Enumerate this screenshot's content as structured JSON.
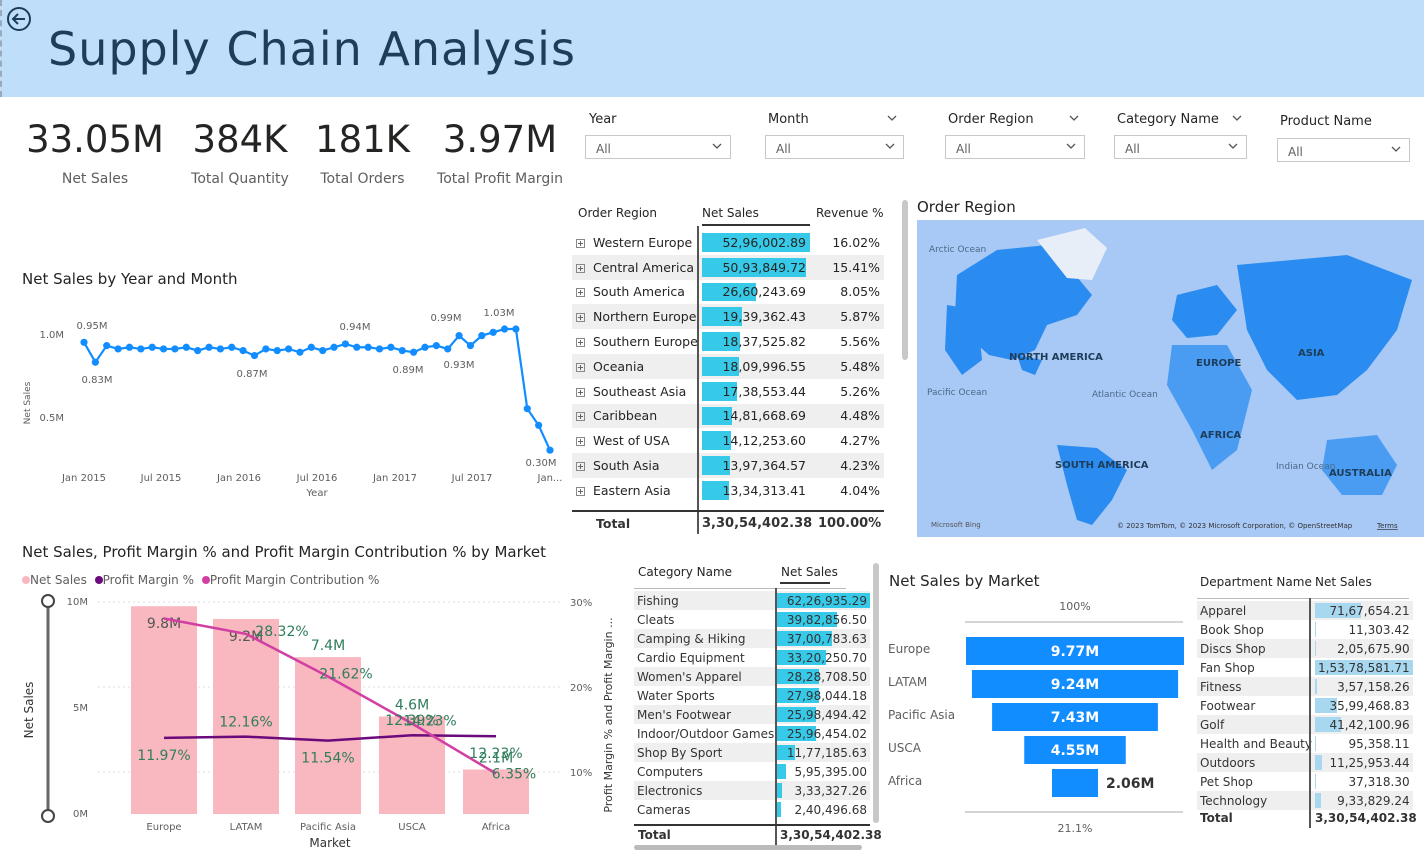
{
  "header": {
    "title": "Supply Chain Analysis"
  },
  "kpis": [
    {
      "value": "33.05M",
      "label": "Net Sales"
    },
    {
      "value": "384K",
      "label": "Total Quantity"
    },
    {
      "value": "181K",
      "label": "Total Orders"
    },
    {
      "value": "3.97M",
      "label": "Total Profit Margin"
    }
  ],
  "slicers": [
    {
      "label": "Year",
      "value": "All"
    },
    {
      "label": "Month",
      "value": "All"
    },
    {
      "label": "Order Region",
      "value": "All"
    },
    {
      "label": "Category Name",
      "value": "All"
    },
    {
      "label": "Product Name",
      "value": "All"
    }
  ],
  "region_table": {
    "headers": [
      "Order Region",
      "Net Sales",
      "Revenue %"
    ],
    "rows": [
      {
        "region": "Western Europe",
        "sales": "52,96,002.89",
        "pct": "16.02%",
        "share": 1.0
      },
      {
        "region": "Central America",
        "sales": "50,93,849.72",
        "pct": "15.41%",
        "share": 0.96
      },
      {
        "region": "South America",
        "sales": "26,60,243.69",
        "pct": "8.05%",
        "share": 0.5
      },
      {
        "region": "Northern Europe",
        "sales": "19,39,362.43",
        "pct": "5.87%",
        "share": 0.37
      },
      {
        "region": "Southern Europe",
        "sales": "18,37,525.82",
        "pct": "5.56%",
        "share": 0.35
      },
      {
        "region": "Oceania",
        "sales": "18,09,996.55",
        "pct": "5.48%",
        "share": 0.34
      },
      {
        "region": "Southeast Asia",
        "sales": "17,38,553.44",
        "pct": "5.26%",
        "share": 0.33
      },
      {
        "region": "Caribbean",
        "sales": "14,81,668.69",
        "pct": "4.48%",
        "share": 0.28
      },
      {
        "region": "West of USA",
        "sales": "14,12,253.60",
        "pct": "4.27%",
        "share": 0.27
      },
      {
        "region": "South Asia",
        "sales": "13,97,364.57",
        "pct": "4.23%",
        "share": 0.26
      },
      {
        "region": "Eastern Asia",
        "sales": "13,34,313.41",
        "pct": "4.04%",
        "share": 0.25
      }
    ],
    "total_label": "Total",
    "total_sales": "3,30,54,402.38",
    "total_pct": "100.00%"
  },
  "map": {
    "title": "Order Region",
    "labels": {
      "north_america": "NORTH AMERICA",
      "south_america": "SOUTH AMERICA",
      "europe": "EUROPE",
      "africa": "AFRICA",
      "asia": "ASIA",
      "australia": "AUSTRALIA",
      "arctic": "Arctic Ocean",
      "pacific": "Pacific Ocean",
      "atlantic": "Atlantic Ocean",
      "indian": "Indian Ocean"
    },
    "bing": "Microsoft Bing",
    "copyright": "© 2023 TomTom, © 2023 Microsoft Corporation, © OpenStreetMap",
    "terms": "Terms"
  },
  "line_chart": {
    "title": "Net Sales by Year and Month",
    "ylabel": "Net Sales",
    "xlabel": "Year",
    "yticks": [
      "1.0M",
      "0.5M"
    ],
    "xticks": [
      "Jan 2015",
      "Jul 2015",
      "Jan 2016",
      "Jul 2016",
      "Jan 2017",
      "Jul 2017",
      "Jan..."
    ],
    "labels": [
      "0.95M",
      "0.83M",
      "0.87M",
      "0.94M",
      "0.89M",
      "0.99M",
      "0.93M",
      "1.03M",
      "0.30M"
    ]
  },
  "chart_data": {
    "type": "line",
    "title": "Net Sales by Year and Month",
    "xlabel": "Year",
    "ylabel": "Net Sales",
    "ylim": [
      0,
      1.2
    ],
    "series": [
      {
        "values": [
          0.95,
          0.83,
          0.93,
          0.91,
          0.92,
          0.91,
          0.92,
          0.91,
          0.91,
          0.92,
          0.9,
          0.92,
          0.91,
          0.92,
          0.9,
          0.87,
          0.91,
          0.9,
          0.91,
          0.89,
          0.92,
          0.9,
          0.92,
          0.94,
          0.92,
          0.92,
          0.91,
          0.92,
          0.9,
          0.89,
          0.92,
          0.93,
          0.91,
          0.99,
          0.93,
          0.99,
          1.01,
          1.03,
          1.03,
          0.55,
          0.45,
          0.3
        ]
      }
    ]
  },
  "combo_chart": {
    "title": "Net Sales, Profit Margin % and Profit Margin Contribution % by Market",
    "legend": [
      "Net Sales",
      "Profit Margin %",
      "Profit Margin Contribution %"
    ],
    "colors": {
      "bars": "#f9b8c0",
      "profit": "#6b0a7a",
      "contrib": "#d13fa3"
    },
    "ylabel": "Net Sales",
    "y2label": "Profit Margin % and Profit Margin ...",
    "xlabel": "Market",
    "yticks": [
      "10M",
      "5M",
      "0M"
    ],
    "y2ticks": [
      "30%",
      "20%",
      "10%"
    ],
    "markets": [
      "Europe",
      "LATAM",
      "Pacific Asia",
      "USCA",
      "Africa"
    ],
    "bar_values": [
      9.8,
      9.2,
      7.4,
      4.6,
      2.1
    ],
    "bar_labels": [
      "9.8M",
      "9.2M",
      "7.4M",
      "4.6M",
      "2.1M"
    ],
    "profit_pct": [
      11.97,
      12.16,
      11.54,
      12.39,
      12.23
    ],
    "profit_labels": [
      "11.97%",
      "12.16%",
      "11.54%",
      "12.39%",
      "12.23%"
    ],
    "contrib_pct": [
      29.8,
      28.32,
      21.62,
      14.23,
      6.35
    ],
    "contrib_labels": [
      "28.32%",
      "21.62%",
      "14.23%",
      "6.35%"
    ]
  },
  "category_table": {
    "headers": [
      "Category Name",
      "Net Sales"
    ],
    "rows": [
      {
        "name": "Fishing",
        "sales": "62,26,935.29",
        "share": 1.0
      },
      {
        "name": "Cleats",
        "sales": "39,82,856.50",
        "share": 0.64
      },
      {
        "name": "Camping & Hiking",
        "sales": "37,00,783.63",
        "share": 0.59
      },
      {
        "name": "Cardio Equipment",
        "sales": "33,20,250.70",
        "share": 0.53
      },
      {
        "name": "Women's Apparel",
        "sales": "28,28,708.50",
        "share": 0.45
      },
      {
        "name": "Water Sports",
        "sales": "27,98,044.18",
        "share": 0.45
      },
      {
        "name": "Men's Footwear",
        "sales": "25,98,494.42",
        "share": 0.42
      },
      {
        "name": "Indoor/Outdoor Games",
        "sales": "25,96,454.02",
        "share": 0.42
      },
      {
        "name": "Shop By Sport",
        "sales": "11,77,185.63",
        "share": 0.19
      },
      {
        "name": "Computers",
        "sales": "5,95,395.00",
        "share": 0.1
      },
      {
        "name": "Electronics",
        "sales": "3,33,327.26",
        "share": 0.05
      },
      {
        "name": "Cameras",
        "sales": "2,40,496.68",
        "share": 0.04
      }
    ],
    "total_label": "Total",
    "total_sales": "3,30,54,402.38"
  },
  "funnel": {
    "title": "Net Sales by Market",
    "top_pct": "100%",
    "bottom_pct": "21.1%",
    "markets": [
      "Europe",
      "LATAM",
      "Pacific Asia",
      "USCA",
      "Africa"
    ],
    "labels": [
      "9.77M",
      "9.24M",
      "7.43M",
      "4.55M",
      "2.06M"
    ],
    "values": [
      9.77,
      9.24,
      7.43,
      4.55,
      2.06
    ]
  },
  "dept_table": {
    "headers": [
      "Department Name",
      "Net Sales"
    ],
    "rows": [
      {
        "name": "Apparel",
        "sales": "71,67,654.21",
        "share": 0.47
      },
      {
        "name": "Book Shop",
        "sales": "11,303.42",
        "share": 0.0
      },
      {
        "name": "Discs Shop",
        "sales": "2,05,675.90",
        "share": 0.01
      },
      {
        "name": "Fan Shop",
        "sales": "1,53,78,581.71",
        "share": 1.0
      },
      {
        "name": "Fitness",
        "sales": "3,57,158.26",
        "share": 0.02
      },
      {
        "name": "Footwear",
        "sales": "35,99,468.83",
        "share": 0.23
      },
      {
        "name": "Golf",
        "sales": "41,42,100.96",
        "share": 0.27
      },
      {
        "name": "Health and Beauty",
        "sales": "95,358.11",
        "share": 0.01
      },
      {
        "name": "Outdoors",
        "sales": "11,25,953.44",
        "share": 0.07
      },
      {
        "name": "Pet Shop",
        "sales": "37,318.30",
        "share": 0.0
      },
      {
        "name": "Technology",
        "sales": "9,33,829.24",
        "share": 0.06
      }
    ],
    "total_label": "Total",
    "total_sales": "3,30,54,402.38"
  }
}
